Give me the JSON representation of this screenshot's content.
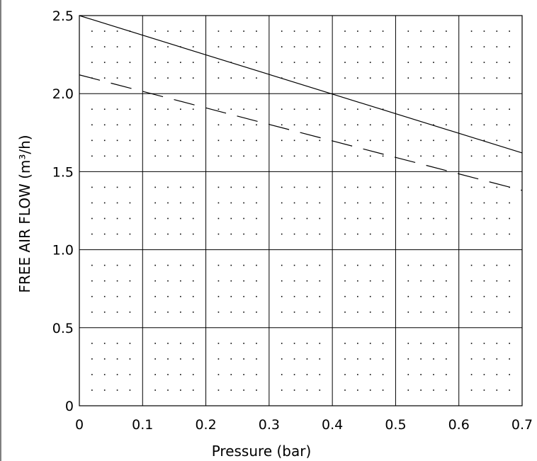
{
  "chart_data": {
    "type": "line",
    "xlabel": "Pressure (bar)",
    "ylabel": "FREE AIR FLOW (m³/h)",
    "xlim": [
      0,
      0.7
    ],
    "ylim": [
      0,
      2.5
    ],
    "x_ticks": [
      0,
      0.1,
      0.2,
      0.3,
      0.4,
      0.5,
      0.6,
      0.7
    ],
    "x_tick_labels": [
      "0",
      "0.1",
      "0.2",
      "0.3",
      "0.4",
      "0.5",
      "0.6",
      "0.7"
    ],
    "y_ticks": [
      0,
      0.5,
      1.0,
      1.5,
      2.0,
      2.5
    ],
    "y_tick_labels": [
      "0",
      "0.5",
      "1.0",
      "1.5",
      "2.0",
      "2.5"
    ],
    "grid": true,
    "minor_grid": "dotted",
    "series": [
      {
        "style": "solid",
        "x": [
          0,
          0.7
        ],
        "y": [
          2.5,
          1.62
        ]
      },
      {
        "style": "dashed",
        "x": [
          0,
          0.7
        ],
        "y": [
          2.12,
          1.38
        ]
      }
    ]
  }
}
